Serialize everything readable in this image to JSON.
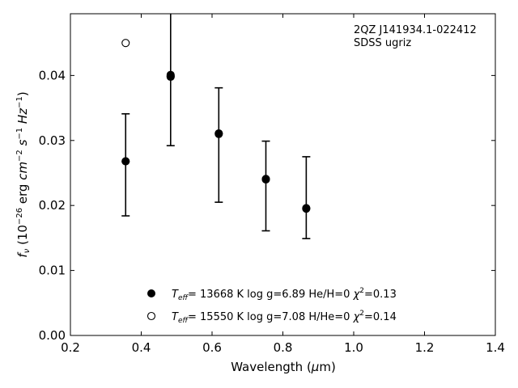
{
  "chart_data": {
    "type": "scatter",
    "title": "",
    "xlabel": "Wavelength (μm)",
    "xlabel_parts": {
      "main": "Wavelength (",
      "mu": "μ",
      "tail": "m)"
    },
    "ylabel": "f_ν (10^-26 erg cm^-2 s^-1 Hz^-1)",
    "xlim": [
      0.2,
      1.4
    ],
    "ylim": [
      0.0,
      0.0495
    ],
    "xticks": [
      0.2,
      0.4,
      0.6,
      0.8,
      1.0,
      1.2,
      1.4
    ],
    "xtick_labels": [
      "0.2",
      "0.4",
      "0.6",
      "0.8",
      "1.0",
      "1.2",
      "1.4"
    ],
    "yticks": [
      0.0,
      0.01,
      0.02,
      0.03,
      0.04
    ],
    "ytick_labels": [
      "0.00",
      "0.01",
      "0.02",
      "0.03",
      "0.04"
    ],
    "grid": false,
    "annotation": [
      "2QZ J141934.1-022412",
      "SDSS ugriz"
    ],
    "observed": {
      "x": [
        0.356,
        0.483,
        0.619,
        0.752,
        0.866
      ],
      "y": [
        0.0268,
        0.0401,
        0.0311,
        0.0241,
        0.0196
      ],
      "yerr_low": [
        0.0184,
        0.0292,
        0.0205,
        0.0161,
        0.0149
      ],
      "yerr_high": [
        0.0341,
        0.05,
        0.0381,
        0.0299,
        0.0275
      ]
    },
    "series": [
      {
        "name": "T_eff= 13668 K  log g=6.89  He/H=0  χ²=0.13",
        "label_parts": {
          "t": "T",
          "sub": "eff",
          "rest": "= 13668 K  log g=6.89  He/H=0  ",
          "chi": "χ",
          "sup": "2",
          "tail": "=0.13"
        },
        "marker": "filled-circle",
        "x": [
          0.356,
          0.483,
          0.619,
          0.752,
          0.866
        ],
        "y": [
          0.0268,
          0.0398,
          0.031,
          0.024,
          0.0195
        ]
      },
      {
        "name": "T_eff= 15550 K  log g=7.08  H/He=0  χ²=0.14",
        "label_parts": {
          "t": "T",
          "sub": "eff",
          "rest": "= 15550 K  log g=7.08  H/He=0  ",
          "chi": "χ",
          "sup": "2",
          "tail": "=0.14"
        },
        "marker": "open-circle",
        "x": [
          0.356,
          0.483
        ],
        "y": [
          0.045,
          0.0399
        ]
      }
    ],
    "legend_position": "lower-center"
  }
}
